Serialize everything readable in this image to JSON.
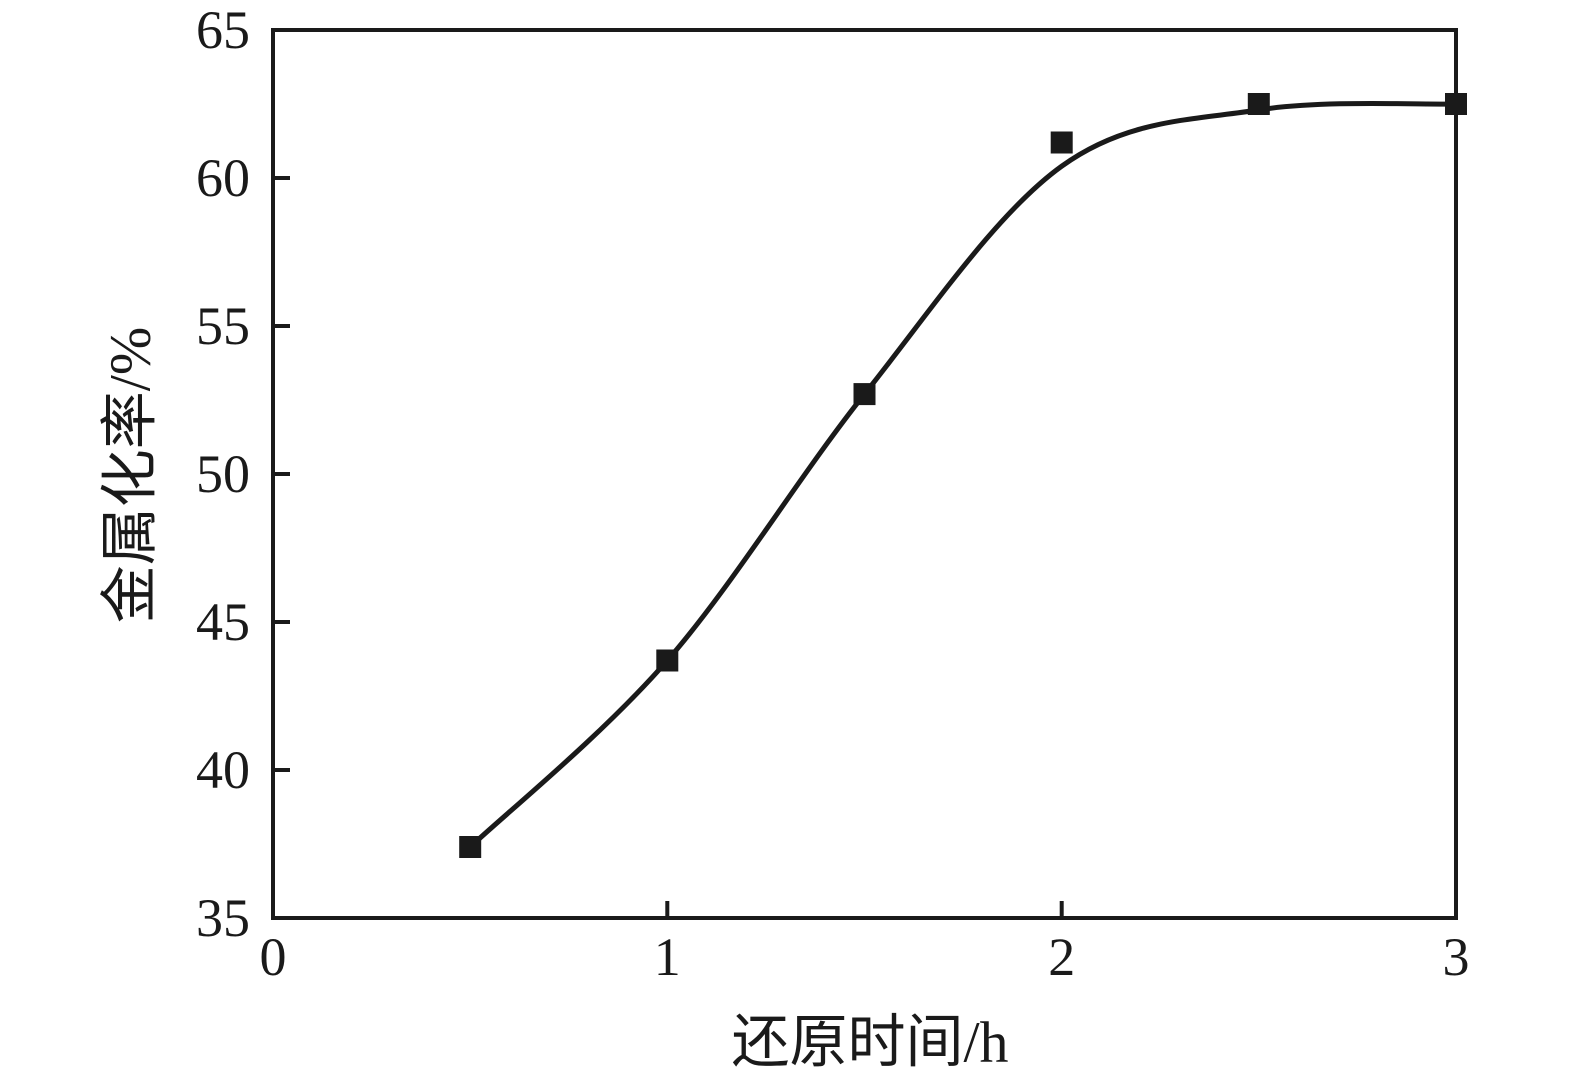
{
  "chart_data": {
    "type": "scatter",
    "title": "",
    "xlabel": "还原时间/h",
    "ylabel": "金属化率/%",
    "x": [
      0.5,
      1,
      1.5,
      2,
      2.5,
      3
    ],
    "series": [
      {
        "name": "金属化率",
        "values": [
          37.4,
          43.7,
          52.7,
          61.2,
          62.5,
          62.5
        ]
      }
    ],
    "trend_curve": [
      [
        0.5,
        37.4
      ],
      [
        1.0,
        43.7
      ],
      [
        1.5,
        52.7
      ],
      [
        2.0,
        60.4
      ],
      [
        2.5,
        62.3
      ],
      [
        3.0,
        62.5
      ]
    ],
    "xlim": [
      0,
      3
    ],
    "ylim": [
      35,
      65
    ],
    "x_ticks": [
      0,
      1,
      2,
      3
    ],
    "y_ticks": [
      35,
      40,
      45,
      50,
      55,
      60,
      65
    ],
    "grid": false,
    "legend": "none",
    "marker": "square",
    "colors": {
      "line": "#1a1a1a",
      "marker": "#1a1a1a",
      "axis": "#1a1a1a",
      "background": "#ffffff"
    }
  }
}
